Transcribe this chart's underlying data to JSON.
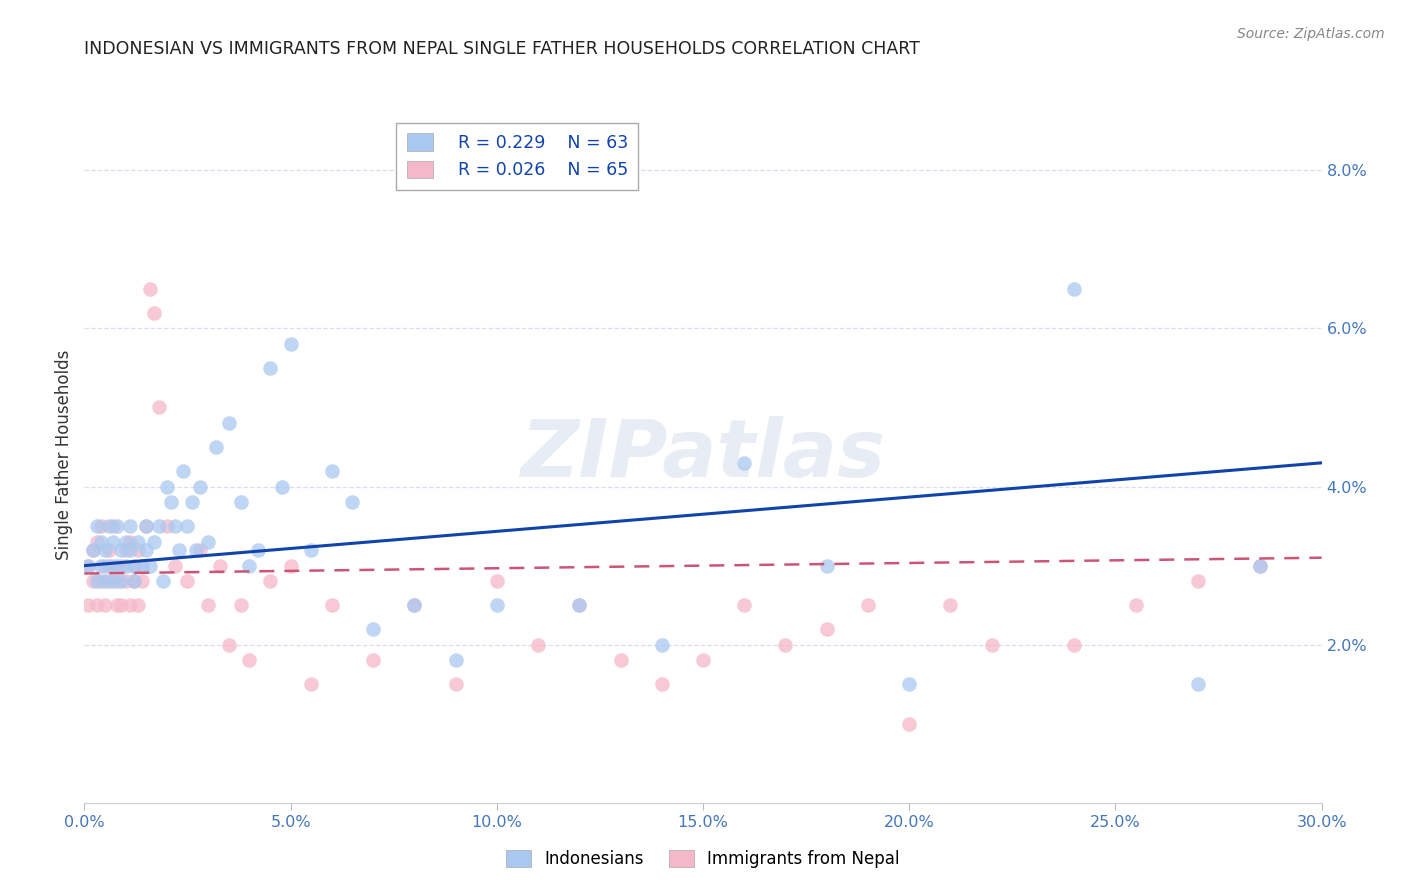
{
  "title": "INDONESIAN VS IMMIGRANTS FROM NEPAL SINGLE FATHER HOUSEHOLDS CORRELATION CHART",
  "source": "Source: ZipAtlas.com",
  "xlim": [
    0.0,
    0.3
  ],
  "ylim": [
    0.0,
    0.088
  ],
  "ylabel": "Single Father Households",
  "legend_labels": [
    "Indonesians",
    "Immigrants from Nepal"
  ],
  "blue_color": "#A8C8F0",
  "pink_color": "#F5B8C8",
  "blue_line_color": "#1144AA",
  "pink_line_color": "#CC5577",
  "grid_color": "#DDDDEE",
  "title_color": "#222222",
  "axis_color": "#4477BB",
  "legend_R1": "R = 0.229",
  "legend_N1": "N = 63",
  "legend_R2": "R = 0.026",
  "legend_N2": "N = 65",
  "blue_scatter_x": [
    0.001,
    0.002,
    0.003,
    0.003,
    0.004,
    0.004,
    0.005,
    0.005,
    0.006,
    0.006,
    0.007,
    0.007,
    0.008,
    0.008,
    0.009,
    0.009,
    0.01,
    0.01,
    0.011,
    0.011,
    0.012,
    0.012,
    0.013,
    0.014,
    0.015,
    0.015,
    0.016,
    0.017,
    0.018,
    0.019,
    0.02,
    0.021,
    0.022,
    0.023,
    0.024,
    0.025,
    0.026,
    0.027,
    0.028,
    0.03,
    0.032,
    0.035,
    0.038,
    0.04,
    0.042,
    0.045,
    0.048,
    0.05,
    0.055,
    0.06,
    0.065,
    0.07,
    0.08,
    0.09,
    0.1,
    0.12,
    0.14,
    0.16,
    0.18,
    0.2,
    0.24,
    0.27,
    0.285
  ],
  "blue_scatter_y": [
    0.03,
    0.032,
    0.028,
    0.035,
    0.033,
    0.03,
    0.028,
    0.032,
    0.035,
    0.03,
    0.033,
    0.028,
    0.03,
    0.035,
    0.032,
    0.028,
    0.033,
    0.03,
    0.035,
    0.032,
    0.03,
    0.028,
    0.033,
    0.03,
    0.032,
    0.035,
    0.03,
    0.033,
    0.035,
    0.028,
    0.04,
    0.038,
    0.035,
    0.032,
    0.042,
    0.035,
    0.038,
    0.032,
    0.04,
    0.033,
    0.045,
    0.048,
    0.038,
    0.03,
    0.032,
    0.055,
    0.04,
    0.058,
    0.032,
    0.042,
    0.038,
    0.022,
    0.025,
    0.018,
    0.025,
    0.025,
    0.02,
    0.043,
    0.03,
    0.015,
    0.065,
    0.015,
    0.03
  ],
  "pink_scatter_x": [
    0.001,
    0.001,
    0.002,
    0.002,
    0.003,
    0.003,
    0.004,
    0.004,
    0.005,
    0.005,
    0.006,
    0.006,
    0.007,
    0.007,
    0.008,
    0.008,
    0.009,
    0.009,
    0.01,
    0.01,
    0.011,
    0.011,
    0.012,
    0.012,
    0.013,
    0.013,
    0.014,
    0.014,
    0.015,
    0.016,
    0.017,
    0.018,
    0.02,
    0.022,
    0.025,
    0.028,
    0.03,
    0.033,
    0.035,
    0.038,
    0.04,
    0.045,
    0.05,
    0.055,
    0.06,
    0.07,
    0.08,
    0.09,
    0.1,
    0.11,
    0.12,
    0.13,
    0.14,
    0.15,
    0.16,
    0.17,
    0.18,
    0.19,
    0.2,
    0.21,
    0.22,
    0.24,
    0.255,
    0.27,
    0.285
  ],
  "pink_scatter_y": [
    0.025,
    0.03,
    0.032,
    0.028,
    0.033,
    0.025,
    0.035,
    0.028,
    0.03,
    0.025,
    0.032,
    0.028,
    0.03,
    0.035,
    0.025,
    0.028,
    0.03,
    0.025,
    0.032,
    0.028,
    0.033,
    0.025,
    0.03,
    0.028,
    0.032,
    0.025,
    0.028,
    0.03,
    0.035,
    0.065,
    0.062,
    0.05,
    0.035,
    0.03,
    0.028,
    0.032,
    0.025,
    0.03,
    0.02,
    0.025,
    0.018,
    0.028,
    0.03,
    0.015,
    0.025,
    0.018,
    0.025,
    0.015,
    0.028,
    0.02,
    0.025,
    0.018,
    0.015,
    0.018,
    0.025,
    0.02,
    0.022,
    0.025,
    0.01,
    0.025,
    0.02,
    0.02,
    0.025,
    0.028,
    0.03
  ],
  "watermark": "ZIPatlas",
  "blue_trend_start": 0.03,
  "blue_trend_end": 0.043,
  "pink_trend_start": 0.029,
  "pink_trend_end": 0.031
}
